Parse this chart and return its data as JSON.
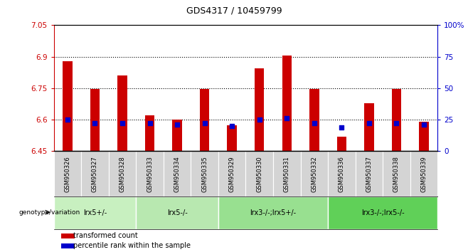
{
  "title": "GDS4317 / 10459799",
  "samples": [
    "GSM950326",
    "GSM950327",
    "GSM950328",
    "GSM950333",
    "GSM950334",
    "GSM950335",
    "GSM950329",
    "GSM950330",
    "GSM950331",
    "GSM950332",
    "GSM950336",
    "GSM950337",
    "GSM950338",
    "GSM950339"
  ],
  "transformed_count": [
    6.88,
    6.745,
    6.81,
    6.62,
    6.6,
    6.745,
    6.575,
    6.845,
    6.905,
    6.745,
    6.52,
    6.68,
    6.745,
    6.59
  ],
  "percentile_rank": [
    25,
    22,
    22,
    22,
    21,
    22,
    20,
    25,
    26,
    22,
    19,
    22,
    22,
    21
  ],
  "ylim_left": [
    6.45,
    7.05
  ],
  "ylim_right": [
    0,
    100
  ],
  "yticks_left": [
    6.45,
    6.6,
    6.75,
    6.9,
    7.05
  ],
  "ytick_labels_left": [
    "6.45",
    "6.6",
    "6.75",
    "6.9",
    "7.05"
  ],
  "yticks_right": [
    0,
    25,
    50,
    75,
    100
  ],
  "ytick_labels_right": [
    "0",
    "25",
    "50",
    "75",
    "100%"
  ],
  "hlines": [
    6.6,
    6.75,
    6.9
  ],
  "bar_color": "#cc0000",
  "dot_color": "#0000cc",
  "bar_bottom": 6.45,
  "groups": [
    {
      "label": "lrx5+/-",
      "start": 0,
      "end": 3,
      "color": "#c8f0c0"
    },
    {
      "label": "lrx5-/-",
      "start": 3,
      "end": 6,
      "color": "#b8e8b0"
    },
    {
      "label": "lrx3-/-;lrx5+/-",
      "start": 6,
      "end": 10,
      "color": "#98e090"
    },
    {
      "label": "lrx3-/-;lrx5-/-",
      "start": 10,
      "end": 14,
      "color": "#60d058"
    }
  ],
  "group_row_label": "genotype/variation",
  "legend_items": [
    {
      "color": "#cc0000",
      "marker": "s",
      "label": "transformed count"
    },
    {
      "color": "#0000cc",
      "marker": "s",
      "label": "percentile rank within the sample"
    }
  ],
  "tick_color_left": "#cc0000",
  "tick_color_right": "#0000cc",
  "sample_bg_color": "#d4d4d4",
  "sample_border_color": "#ffffff"
}
